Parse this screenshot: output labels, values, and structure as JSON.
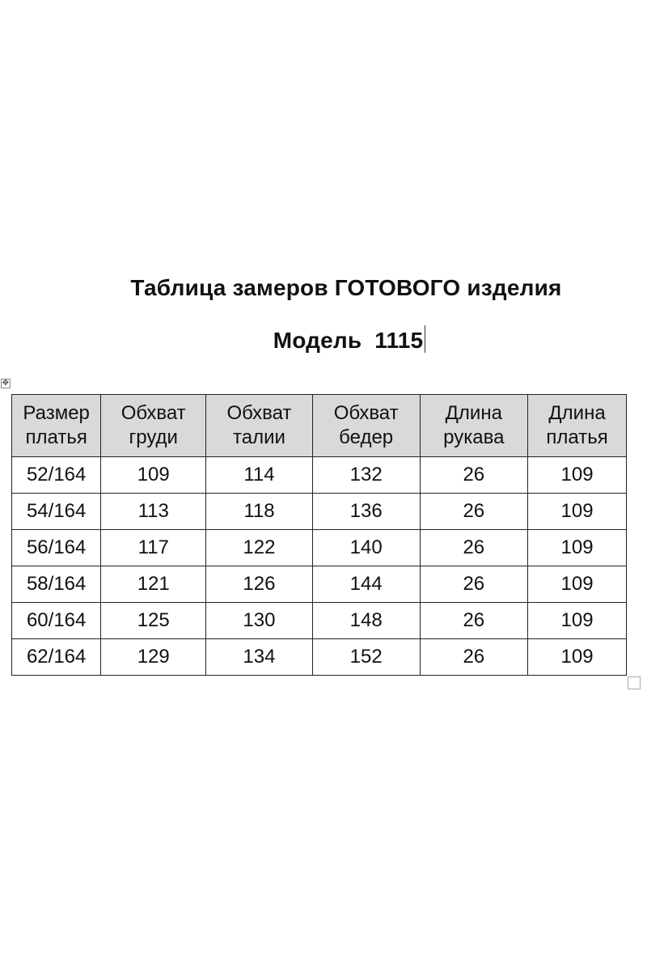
{
  "title": "Таблица замеров ГОТОВОГО изделия",
  "model": "Модель  1115",
  "table": {
    "headers": [
      [
        "Размер",
        "платья"
      ],
      [
        "Обхват",
        "груди"
      ],
      [
        "Обхват",
        "талии"
      ],
      [
        "Обхват",
        "бедер"
      ],
      [
        "Длина",
        "рукава"
      ],
      [
        "Длина",
        "платья"
      ]
    ],
    "rows": [
      [
        "52/164",
        "109",
        "114",
        "132",
        "26",
        "109"
      ],
      [
        "54/164",
        "113",
        "118",
        "136",
        "26",
        "109"
      ],
      [
        "56/164",
        "117",
        "122",
        "140",
        "26",
        "109"
      ],
      [
        "58/164",
        "121",
        "126",
        "144",
        "26",
        "109"
      ],
      [
        "60/164",
        "125",
        "130",
        "148",
        "26",
        "109"
      ],
      [
        "62/164",
        "129",
        "134",
        "152",
        "26",
        "109"
      ]
    ],
    "header_bg": "#d9d9d9"
  }
}
